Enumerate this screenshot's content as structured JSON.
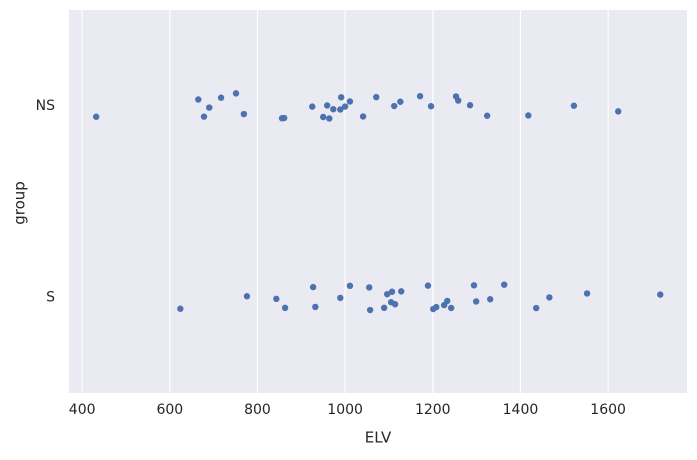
{
  "chart_data": {
    "type": "strip",
    "xlabel": "ELV",
    "ylabel": "group",
    "groups": [
      {
        "name": "NS",
        "values": [
          432,
          665,
          678,
          690,
          717,
          751,
          769,
          856,
          861,
          925,
          950,
          959,
          964,
          973,
          989,
          991,
          1000,
          1011,
          1041,
          1071,
          1112,
          1126,
          1171,
          1196,
          1253,
          1258,
          1285,
          1324,
          1418,
          1522,
          1623
        ]
      },
      {
        "name": "S",
        "values": [
          624,
          776,
          843,
          863,
          927,
          932,
          989,
          1011,
          1055,
          1057,
          1089,
          1096,
          1105,
          1107,
          1114,
          1128,
          1189,
          1201,
          1208,
          1226,
          1233,
          1242,
          1294,
          1299,
          1331,
          1363,
          1436,
          1466,
          1552,
          1719
        ]
      }
    ],
    "color": "#4c72b0",
    "xlim": [
      370,
      1780
    ],
    "xticks": [
      400,
      600,
      800,
      1000,
      1200,
      1400,
      1600
    ],
    "grid": true
  }
}
